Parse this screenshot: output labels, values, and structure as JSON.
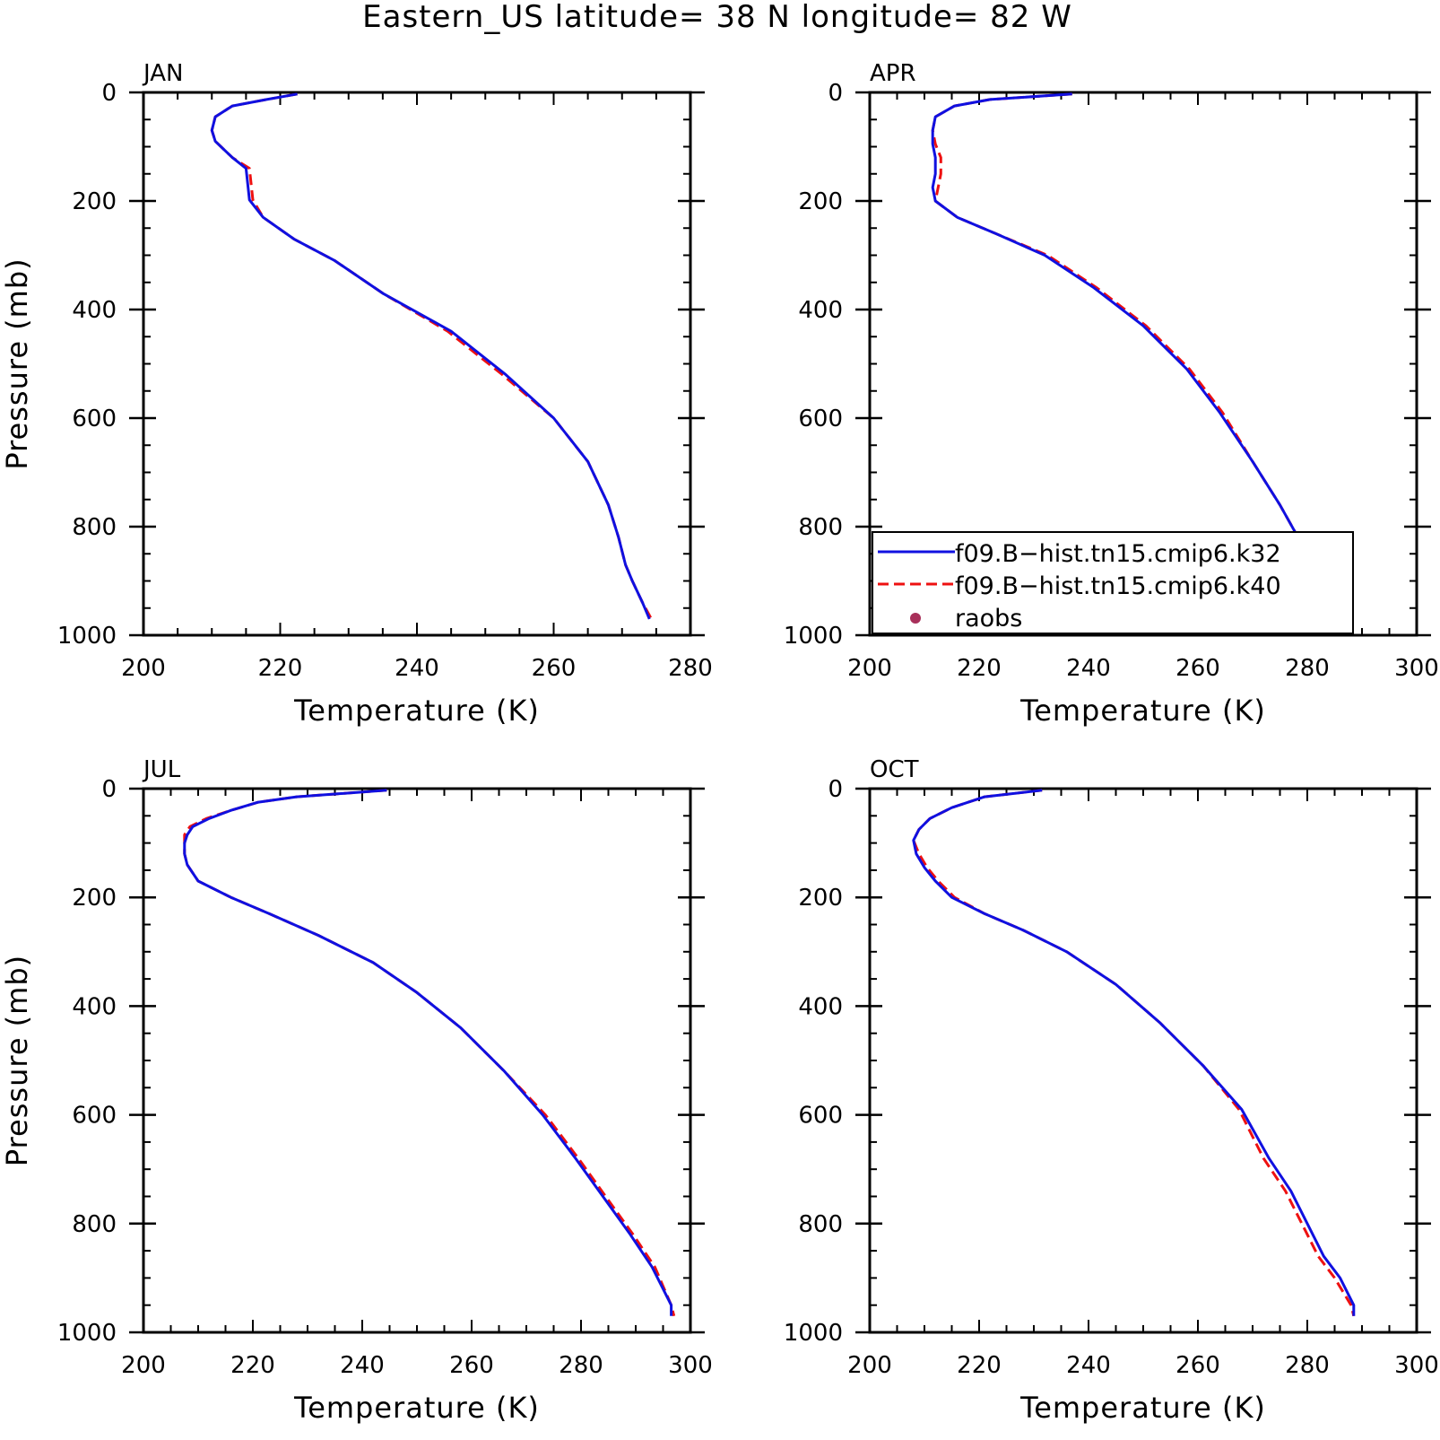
{
  "title": "Eastern_US  latitude= 38 N longitude= 82 W",
  "colors": {
    "k32": "#1010e0",
    "k40": "#ee1111",
    "raobs": "#a8305a",
    "axis": "#000000"
  },
  "legend": {
    "entries": [
      {
        "label": "f09.B−hist.tn15.cmip6.k32",
        "style": "solid",
        "color": "#1010e0"
      },
      {
        "label": "f09.B−hist.tn15.cmip6.k40",
        "style": "dashed",
        "color": "#ee1111"
      },
      {
        "label": "raobs",
        "style": "marker",
        "color": "#a8305a"
      }
    ],
    "panel": "APR",
    "placement": "lower-right"
  },
  "chart_data": [
    {
      "type": "line",
      "panel": "JAN",
      "xlabel": "Temperature (K)",
      "ylabel": "Pressure (mb)",
      "xlim": [
        200,
        280
      ],
      "ylim": [
        1000,
        0
      ],
      "xticks": [
        200,
        220,
        240,
        260,
        280
      ],
      "yticks": [
        0,
        200,
        400,
        600,
        800,
        1000
      ],
      "series": [
        {
          "name": "f09.B−hist.tn15.cmip6.k32",
          "x": [
            222.5,
            218,
            213,
            210.5,
            210,
            210.5,
            213,
            215,
            215.5,
            217.5,
            222,
            228,
            235,
            245,
            253,
            260,
            265,
            268,
            269.5,
            270.5,
            271.5,
            273,
            274
          ],
          "y": [
            3,
            13,
            25,
            45,
            70,
            90,
            120,
            140,
            198,
            230,
            270,
            310,
            370,
            440,
            520,
            600,
            680,
            760,
            820,
            870,
            900,
            940,
            970
          ]
        },
        {
          "name": "f09.B−hist.tn15.cmip6.k40",
          "x": [
            222.5,
            218,
            213,
            210.5,
            210,
            210.5,
            213,
            215.5,
            216,
            217.5,
            222,
            228,
            235,
            244.5,
            252.5,
            260,
            265,
            268,
            269.5,
            270.5,
            271.5,
            273,
            274.5
          ],
          "y": [
            3,
            13,
            25,
            45,
            70,
            90,
            120,
            140,
            198,
            230,
            270,
            310,
            370,
            440,
            520,
            600,
            680,
            760,
            820,
            870,
            900,
            940,
            975
          ]
        }
      ]
    },
    {
      "type": "line",
      "panel": "APR",
      "xlabel": "Temperature (K)",
      "ylabel": "",
      "xlim": [
        200,
        300
      ],
      "ylim": [
        1000,
        0
      ],
      "xticks": [
        200,
        220,
        240,
        260,
        280,
        300
      ],
      "yticks": [
        0,
        200,
        400,
        600,
        800,
        1000
      ],
      "series": [
        {
          "name": "f09.B−hist.tn15.cmip6.k32",
          "x": [
            237,
            222,
            215.5,
            212,
            211.5,
            211.5,
            212,
            212,
            211.5,
            212,
            216,
            223,
            232,
            241,
            250,
            258,
            264,
            270,
            275,
            280,
            284,
            286.5,
            287
          ],
          "y": [
            3,
            13,
            25,
            45,
            70,
            95,
            120,
            150,
            175,
            200,
            230,
            260,
            300,
            360,
            430,
            510,
            590,
            680,
            760,
            850,
            920,
            950,
            970
          ]
        },
        {
          "name": "f09.B−hist.tn15.cmip6.k40",
          "x": [
            237,
            222,
            215.5,
            212,
            211.5,
            212,
            213,
            213,
            212.5,
            212,
            216,
            223,
            232.5,
            241.5,
            250.5,
            258.5,
            264.5,
            270,
            275,
            280,
            284,
            286.5,
            287
          ],
          "y": [
            3,
            13,
            25,
            45,
            70,
            95,
            120,
            150,
            175,
            200,
            230,
            260,
            300,
            360,
            430,
            510,
            590,
            680,
            760,
            850,
            920,
            950,
            970
          ]
        }
      ]
    },
    {
      "type": "line",
      "panel": "JUL",
      "xlabel": "Temperature (K)",
      "ylabel": "Pressure (mb)",
      "xlim": [
        200,
        300
      ],
      "ylim": [
        1000,
        0
      ],
      "xticks": [
        200,
        220,
        240,
        260,
        280,
        300
      ],
      "yticks": [
        0,
        200,
        400,
        600,
        800,
        1000
      ],
      "series": [
        {
          "name": "f09.B−hist.tn15.cmip6.k32",
          "x": [
            244.5,
            228,
            221,
            216,
            212,
            209,
            208,
            207.5,
            207.5,
            208,
            210,
            216,
            223,
            232,
            242,
            250,
            258,
            266,
            273,
            279,
            284,
            289,
            293,
            296.5,
            296.5
          ],
          "y": [
            3,
            15,
            25,
            40,
            55,
            70,
            85,
            100,
            120,
            140,
            170,
            200,
            230,
            270,
            320,
            375,
            440,
            520,
            600,
            680,
            750,
            820,
            880,
            950,
            970
          ]
        },
        {
          "name": "f09.B−hist.tn15.cmip6.k40",
          "x": [
            244.5,
            228,
            221,
            216,
            211.5,
            208.5,
            207.5,
            207.5,
            207.5,
            208,
            210,
            216,
            223,
            232,
            242,
            250,
            258,
            266,
            273.5,
            279.5,
            284.5,
            289.5,
            293.5,
            296.5,
            297
          ],
          "y": [
            3,
            15,
            25,
            40,
            55,
            70,
            85,
            100,
            120,
            140,
            170,
            200,
            230,
            270,
            320,
            375,
            440,
            520,
            600,
            680,
            750,
            820,
            880,
            950,
            970
          ]
        }
      ]
    },
    {
      "type": "line",
      "panel": "OCT",
      "xlabel": "Temperature (K)",
      "ylabel": "",
      "xlim": [
        200,
        300
      ],
      "ylim": [
        1000,
        0
      ],
      "xticks": [
        200,
        220,
        240,
        260,
        280,
        300
      ],
      "yticks": [
        0,
        200,
        400,
        600,
        800,
        1000
      ],
      "series": [
        {
          "name": "f09.B−hist.tn15.cmip6.k32",
          "x": [
            231.5,
            221,
            215,
            211,
            209,
            208,
            208.5,
            210,
            212,
            215,
            221,
            228,
            236,
            245,
            253,
            261,
            268,
            273,
            277,
            280,
            283,
            286,
            288.5,
            288.5
          ],
          "y": [
            3,
            15,
            35,
            55,
            75,
            95,
            120,
            145,
            170,
            200,
            230,
            260,
            300,
            360,
            430,
            510,
            590,
            680,
            740,
            800,
            860,
            900,
            950,
            970
          ]
        },
        {
          "name": "f09.B−hist.tn15.cmip6.k40",
          "x": [
            231.5,
            221,
            215,
            211,
            209,
            208,
            209,
            210.5,
            212.5,
            215.5,
            221,
            228,
            236,
            245,
            253,
            261,
            267.5,
            272,
            276,
            279,
            282,
            285,
            288,
            288.5
          ],
          "y": [
            3,
            15,
            35,
            55,
            75,
            95,
            120,
            145,
            170,
            200,
            230,
            260,
            300,
            360,
            430,
            510,
            590,
            680,
            740,
            800,
            860,
            900,
            950,
            970
          ]
        }
      ]
    }
  ]
}
